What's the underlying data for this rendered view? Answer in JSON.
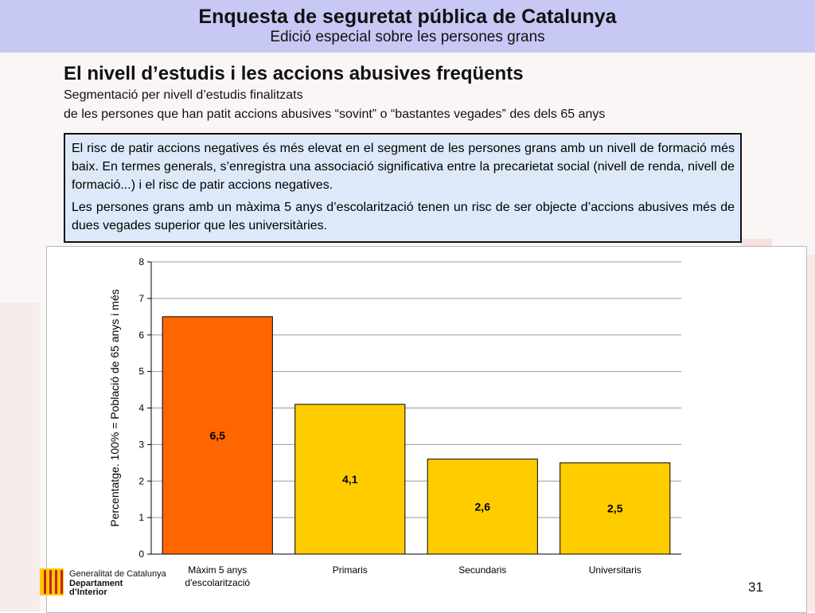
{
  "header": {
    "title": "Enquesta de seguretat pública de Catalunya",
    "subtitle": "Edició especial sobre les persones grans"
  },
  "section": {
    "title": "El nivell d’estudis i les accions abusives freqüents",
    "segmentation_line1": "Segmentació per nivell d’estudis finalitzats",
    "segmentation_line2": "de les persones que han patit accions abusives “sovint” o “bastantes vegades” des dels 65 anys"
  },
  "info_box": {
    "paragraph1": "El risc de patir accions negatives és més elevat en el segment de les persones grans amb un nivell de formació més baix. En termes generals, s’enregistra una associació significativa entre la precarietat social (nivell de renda, nivell de formació...) i el risc de patir accions negatives.",
    "paragraph2": "Les persones grans amb un màxima 5 anys d’escolarització tenen un risc de ser objecte d’accions abusives més de dues vegades superior que les universitàries."
  },
  "chart_data": {
    "type": "bar",
    "categories": [
      "Màxim 5 anys d'escolarització",
      "Primaris",
      "Secundaris",
      "Universitaris"
    ],
    "category_lines": [
      [
        "Màxim 5 anys",
        "d'escolarització"
      ],
      [
        "Primaris"
      ],
      [
        "Secundaris"
      ],
      [
        "Universitaris"
      ]
    ],
    "values": [
      6.5,
      4.1,
      2.6,
      2.5
    ],
    "data_labels": [
      "6,5",
      "4,1",
      "2,6",
      "2,5"
    ],
    "bar_colors": [
      "#ff6600",
      "#ffcc00",
      "#ffcc00",
      "#ffcc00"
    ],
    "title": "",
    "xlabel": "",
    "ylabel": "Percentatge. 100% = Població de 65 anys i més",
    "ylim": [
      0,
      8
    ],
    "yticks": [
      0,
      1,
      2,
      3,
      4,
      5,
      6,
      7,
      8
    ],
    "grid": true,
    "legend": "none"
  },
  "footer": {
    "org_line1": "Generalitat de Catalunya",
    "org_line2": "Departament",
    "org_line3": "d’Interior",
    "page_number": "31"
  },
  "colors": {
    "header_bg": "#c8c8f5",
    "info_box_bg": "#dde9f8",
    "highlight_bar": "#ff6600",
    "regular_bar": "#ffcc00",
    "logo_red": "#cc2222",
    "logo_yellow": "#ffcc00"
  }
}
